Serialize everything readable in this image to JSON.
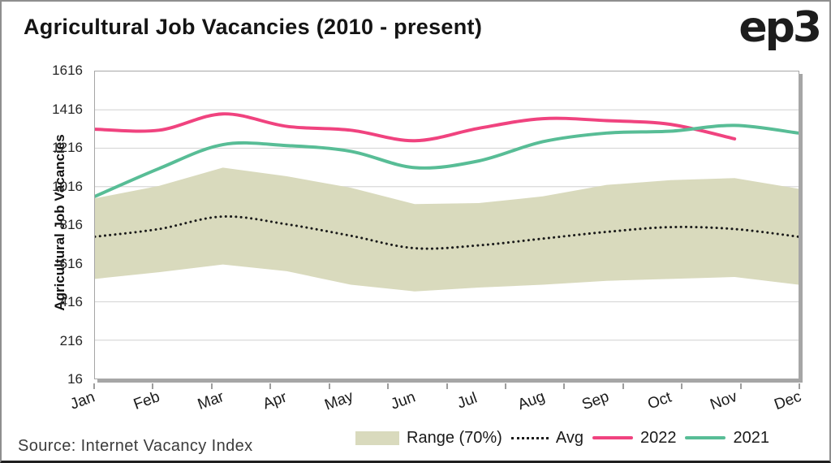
{
  "header": {
    "title": "Agricultural Job Vacancies (2010 - present)",
    "logo": "ep3"
  },
  "footer": {
    "source": "Source: Internet Vacancy Index"
  },
  "legend": {
    "range": "Range (70%)",
    "avg": "Avg",
    "y2022": "2022",
    "y2021": "2021"
  },
  "chart_data": {
    "type": "line",
    "title": "Agricultural Job Vacancies (2010 - present)",
    "xlabel": "",
    "ylabel": "Agricultural Job Vacancies",
    "categories": [
      "Jan",
      "Feb",
      "Mar",
      "Apr",
      "May",
      "Jun",
      "Jul",
      "Aug",
      "Sep",
      "Oct",
      "Nov",
      "Dec"
    ],
    "yticks": [
      16,
      216,
      416,
      616,
      816,
      1016,
      1216,
      1416,
      1616
    ],
    "ylim": [
      16,
      1616
    ],
    "grid": true,
    "legend_position": "bottom",
    "series": [
      {
        "name": "Range (70%)",
        "type": "band",
        "color": "#d9dabd",
        "upper": [
          955,
          1020,
          1115,
          1070,
          1010,
          925,
          930,
          965,
          1025,
          1050,
          1060,
          1005
        ],
        "lower": [
          535,
          570,
          610,
          575,
          505,
          470,
          490,
          505,
          525,
          535,
          545,
          505
        ]
      },
      {
        "name": "Avg",
        "type": "dotted-line",
        "color": "#1a1a1a",
        "values": [
          755,
          795,
          860,
          820,
          760,
          695,
          710,
          745,
          780,
          805,
          795,
          755
        ]
      },
      {
        "name": "2022",
        "type": "line",
        "color": "#f0437f",
        "values": [
          1315,
          1310,
          1395,
          1330,
          1310,
          1255,
          1320,
          1370,
          1360,
          1340,
          1265,
          null
        ]
      },
      {
        "name": "2021",
        "type": "line",
        "color": "#58bd96",
        "values": [
          965,
          1110,
          1235,
          1230,
          1200,
          1115,
          1150,
          1250,
          1295,
          1305,
          1335,
          1295
        ]
      }
    ],
    "grid_color": "#d9d9d9",
    "axis_color": "#a6a6a6"
  }
}
